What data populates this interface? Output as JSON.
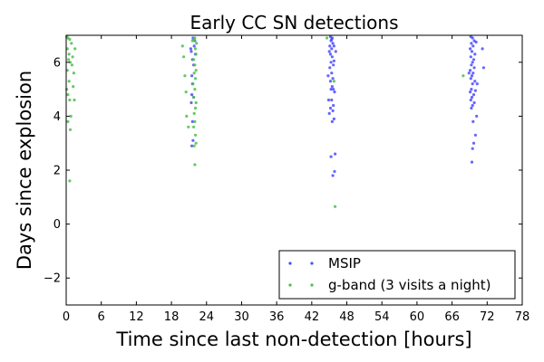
{
  "chart_data": {
    "type": "scatter",
    "title": "Early CC SN detections",
    "xlabel": "Time since last non-detection [hours]",
    "ylabel": "Days since explosion",
    "xlim": [
      0,
      78
    ],
    "ylim": [
      -3,
      7
    ],
    "xticks": [
      0,
      6,
      12,
      18,
      24,
      30,
      36,
      42,
      48,
      54,
      60,
      66,
      72,
      78
    ],
    "yticks": [
      -2,
      0,
      2,
      4,
      6
    ],
    "legend_placement": "lower-right",
    "grid": false,
    "series": [
      {
        "name": "MSIP",
        "color": "#4b4bff",
        "points": [
          [
            21.4,
            4.5
          ],
          [
            21.5,
            4.8
          ],
          [
            21.6,
            3.8
          ],
          [
            21.7,
            3.1
          ],
          [
            21.5,
            2.9
          ],
          [
            21.8,
            5.9
          ],
          [
            21.6,
            6.1
          ],
          [
            21.9,
            6.6
          ],
          [
            21.7,
            6.9
          ],
          [
            22.1,
            6.3
          ],
          [
            21.3,
            6.5
          ],
          [
            21.5,
            5.5
          ],
          [
            21.6,
            5.2
          ],
          [
            21.8,
            4.7
          ],
          [
            22.0,
            6.8
          ],
          [
            21.4,
            6.4
          ],
          [
            45.2,
            6.95
          ],
          [
            45.5,
            6.9
          ],
          [
            45.3,
            6.8
          ],
          [
            45.6,
            6.7
          ],
          [
            45.1,
            6.6
          ],
          [
            45.4,
            6.5
          ],
          [
            45.8,
            6.6
          ],
          [
            45.2,
            6.3
          ],
          [
            45.5,
            6.2
          ],
          [
            45.3,
            6.0
          ],
          [
            45.7,
            5.9
          ],
          [
            45.1,
            5.8
          ],
          [
            45.4,
            5.6
          ],
          [
            45.6,
            5.4
          ],
          [
            45.2,
            5.3
          ],
          [
            45.5,
            5.1
          ],
          [
            45.3,
            5.0
          ],
          [
            45.9,
            4.9
          ],
          [
            45.4,
            4.6
          ],
          [
            45.7,
            4.4
          ],
          [
            45.2,
            4.3
          ],
          [
            45.6,
            4.2
          ],
          [
            45.0,
            4.1
          ],
          [
            45.8,
            3.9
          ],
          [
            45.5,
            3.8
          ],
          [
            45.3,
            2.5
          ],
          [
            46.0,
            2.6
          ],
          [
            45.9,
            1.95
          ],
          [
            45.6,
            1.8
          ],
          [
            44.9,
            4.6
          ],
          [
            44.8,
            5.5
          ],
          [
            45.0,
            6.4
          ],
          [
            45.4,
            6.85
          ],
          [
            45.8,
            6.05
          ],
          [
            46.1,
            6.4
          ],
          [
            45.7,
            5.0
          ],
          [
            69.2,
            6.95
          ],
          [
            69.5,
            6.9
          ],
          [
            69.8,
            6.8
          ],
          [
            69.3,
            6.7
          ],
          [
            69.6,
            6.6
          ],
          [
            69.1,
            6.5
          ],
          [
            69.4,
            6.4
          ],
          [
            69.9,
            6.3
          ],
          [
            69.2,
            6.2
          ],
          [
            69.7,
            6.1
          ],
          [
            69.5,
            6.0
          ],
          [
            69.3,
            5.9
          ],
          [
            69.8,
            5.8
          ],
          [
            69.1,
            5.7
          ],
          [
            69.6,
            5.6
          ],
          [
            69.4,
            5.5
          ],
          [
            69.2,
            5.4
          ],
          [
            69.9,
            5.3
          ],
          [
            69.5,
            5.2
          ],
          [
            69.3,
            5.0
          ],
          [
            70.0,
            4.95
          ],
          [
            69.1,
            4.9
          ],
          [
            69.7,
            4.8
          ],
          [
            69.4,
            4.7
          ],
          [
            69.2,
            4.6
          ],
          [
            69.8,
            4.5
          ],
          [
            69.5,
            4.4
          ],
          [
            69.3,
            4.3
          ],
          [
            70.2,
            4.0
          ],
          [
            69.6,
            3.8
          ],
          [
            70.0,
            3.3
          ],
          [
            69.7,
            3.0
          ],
          [
            69.5,
            2.8
          ],
          [
            69.4,
            2.3
          ],
          [
            71.2,
            6.5
          ],
          [
            71.4,
            5.8
          ],
          [
            70.3,
            5.2
          ],
          [
            70.1,
            6.75
          ],
          [
            68.9,
            5.6
          ]
        ]
      },
      {
        "name": "g-band (3 visits a night)",
        "color": "#4bbf4b",
        "points": [
          [
            0.1,
            6.95
          ],
          [
            0.3,
            6.9
          ],
          [
            0.6,
            6.85
          ],
          [
            0.9,
            6.7
          ],
          [
            0.2,
            6.5
          ],
          [
            0.5,
            6.3
          ],
          [
            0.4,
            6.1
          ],
          [
            0.7,
            6.0
          ],
          [
            1.0,
            5.9
          ],
          [
            0.2,
            5.7
          ],
          [
            1.3,
            5.6
          ],
          [
            0.5,
            5.3
          ],
          [
            0.1,
            5.0
          ],
          [
            0.3,
            4.8
          ],
          [
            0.6,
            4.6
          ],
          [
            1.5,
            6.5
          ],
          [
            1.2,
            5.1
          ],
          [
            1.4,
            4.6
          ],
          [
            0.8,
            4.0
          ],
          [
            0.3,
            3.8
          ],
          [
            0.7,
            3.5
          ],
          [
            0.6,
            1.6
          ],
          [
            1.1,
            6.2
          ],
          [
            19.9,
            6.6
          ],
          [
            20.1,
            6.2
          ],
          [
            20.3,
            5.5
          ],
          [
            20.5,
            4.9
          ],
          [
            20.6,
            4.0
          ],
          [
            20.9,
            3.6
          ],
          [
            21.9,
            6.8
          ],
          [
            22.0,
            6.9
          ],
          [
            22.1,
            6.5
          ],
          [
            22.2,
            6.3
          ],
          [
            21.8,
            6.1
          ],
          [
            22.0,
            5.9
          ],
          [
            22.2,
            5.7
          ],
          [
            21.9,
            5.6
          ],
          [
            22.1,
            5.4
          ],
          [
            21.7,
            5.2
          ],
          [
            22.0,
            5.0
          ],
          [
            21.8,
            4.7
          ],
          [
            22.2,
            4.5
          ],
          [
            22.1,
            4.3
          ],
          [
            21.9,
            4.1
          ],
          [
            22.0,
            3.8
          ],
          [
            21.8,
            3.6
          ],
          [
            22.2,
            3.0
          ],
          [
            22.1,
            3.3
          ],
          [
            21.9,
            2.9
          ],
          [
            22.0,
            2.2
          ],
          [
            22.3,
            6.7
          ],
          [
            21.6,
            6.8
          ],
          [
            44.6,
            6.9
          ],
          [
            45.8,
            5.3
          ],
          [
            46.0,
            0.65
          ],
          [
            67.9,
            5.5
          ]
        ]
      }
    ]
  }
}
